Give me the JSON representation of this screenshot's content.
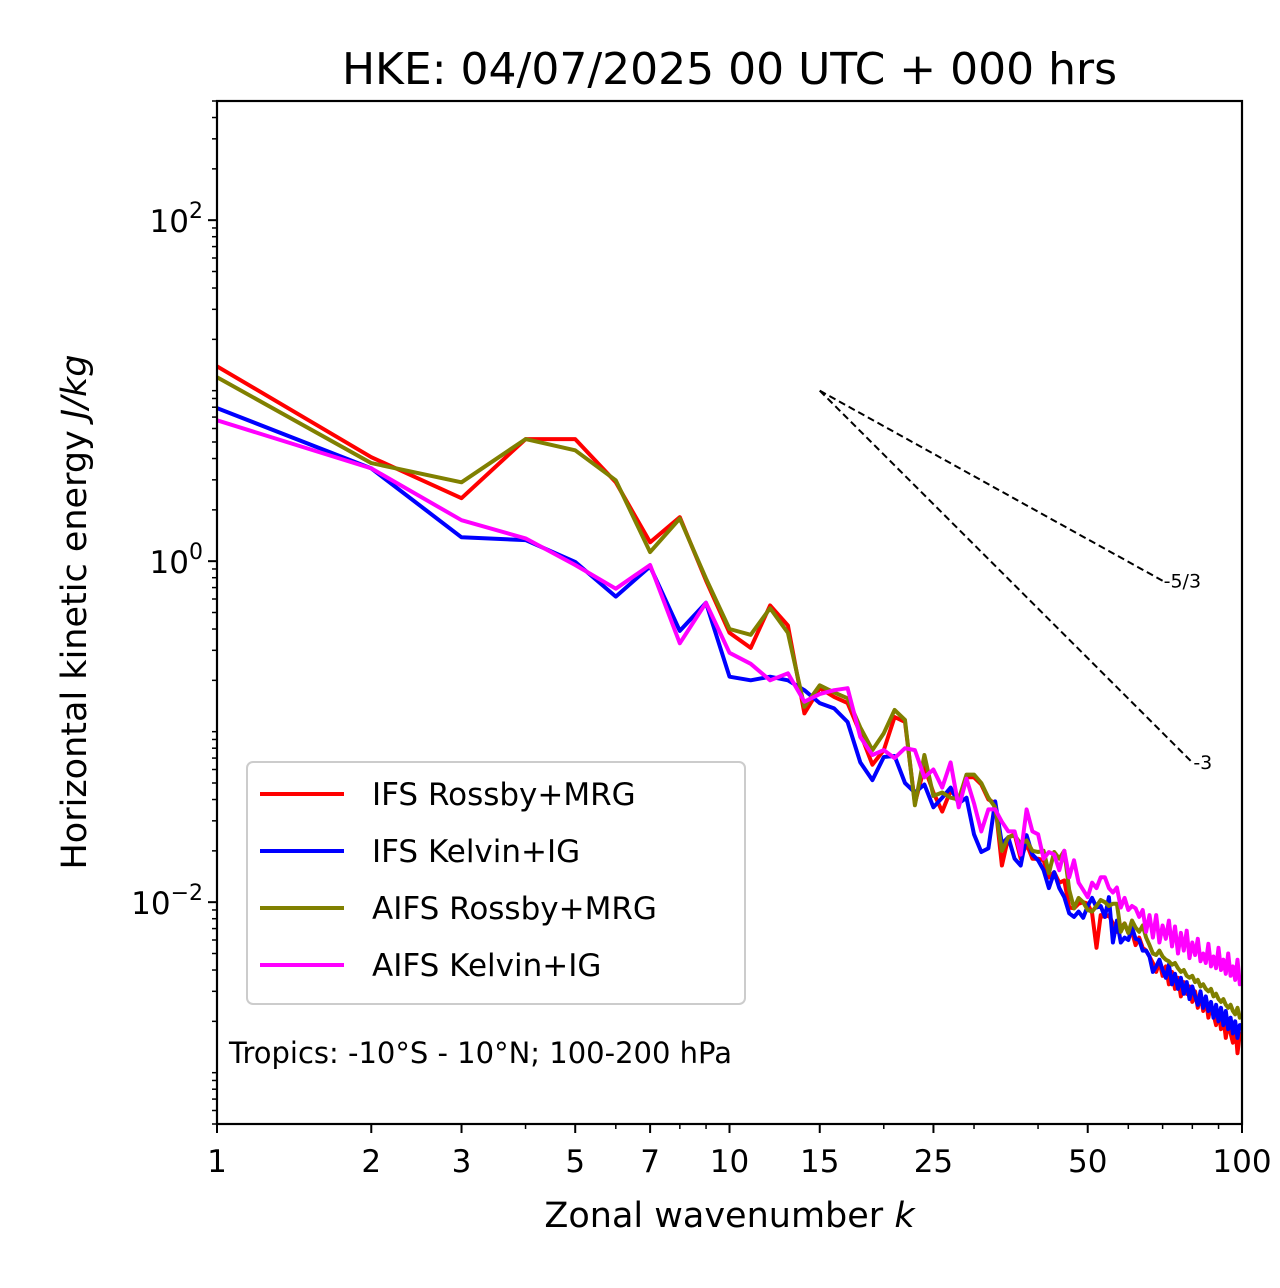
{
  "chart_data": {
    "type": "line",
    "title": "HKE: 04/07/2025 00 UTC + 000 hrs",
    "xlabel": "Zonal wavenumber",
    "xlabel_var": "k",
    "ylabel": "Horizontal kinetic energy",
    "ylabel_units": "J/kg",
    "xscale": "log",
    "yscale": "log",
    "xlim": [
      1,
      100
    ],
    "ylim": [
      0.0005,
      500
    ],
    "grid": false,
    "xticks": [
      {
        "value": 1,
        "label": "1"
      },
      {
        "value": 2,
        "label": "2"
      },
      {
        "value": 3,
        "label": "3"
      },
      {
        "value": 5,
        "label": "5"
      },
      {
        "value": 7,
        "label": "7"
      },
      {
        "value": 10,
        "label": "10"
      },
      {
        "value": 15,
        "label": "15"
      },
      {
        "value": 25,
        "label": "25"
      },
      {
        "value": 50,
        "label": "50"
      },
      {
        "value": 100,
        "label": "100"
      }
    ],
    "xminor_ticks": [
      4,
      6,
      8,
      9,
      20,
      30,
      40,
      60,
      70,
      80,
      90
    ],
    "yticks": [
      {
        "value": 0.01,
        "base": "10",
        "exp": "−2"
      },
      {
        "value": 1,
        "base": "10",
        "exp": "0"
      },
      {
        "value": 100,
        "base": "10",
        "exp": "2"
      }
    ],
    "legend_position": "lower-left",
    "annotation": "Tropics: -10°S - 10°N; 100-200 hPa",
    "reference_lines": [
      {
        "label": "-5/3",
        "slope": -1.6667,
        "k_start": 15,
        "k_end": 70,
        "e_start": 10
      },
      {
        "label": "-3",
        "slope": -3,
        "k_start": 15,
        "k_end": 80,
        "e_start": 10
      }
    ],
    "x": [
      1,
      2,
      3,
      4,
      5,
      6,
      7,
      8,
      9,
      10,
      11,
      12,
      13,
      14,
      15,
      16,
      17,
      18,
      19,
      20,
      21,
      22,
      23,
      24,
      25,
      26,
      27,
      28,
      29,
      30,
      31,
      32,
      33,
      34,
      35,
      36,
      37,
      38,
      39,
      40,
      41,
      42,
      43,
      44,
      45,
      46,
      47,
      48,
      49,
      50,
      51,
      52,
      53,
      54,
      55,
      56,
      57,
      58,
      59,
      60,
      61,
      62,
      63,
      64,
      65,
      66,
      67,
      68,
      69,
      70,
      71,
      72,
      73,
      74,
      75,
      76,
      77,
      78,
      79,
      80,
      81,
      82,
      83,
      84,
      85,
      86,
      87,
      88,
      89,
      90,
      91,
      92,
      93,
      94,
      95,
      96,
      97,
      98,
      99,
      100
    ],
    "series": [
      {
        "name": "IFS Rossby+MRG",
        "color": "#ff0000",
        "values": [
          13.9,
          4.07,
          2.34,
          5.2,
          5.2,
          2.9,
          1.29,
          1.81,
          0.77,
          0.38,
          0.31,
          0.55,
          0.42,
          0.128,
          0.18,
          0.16,
          0.147,
          0.098,
          0.064,
          0.078,
          0.122,
          0.114,
          0.038,
          0.062,
          0.044,
          0.034,
          0.045,
          0.04,
          0.054,
          0.054,
          0.049,
          0.04,
          0.038,
          0.0164,
          0.024,
          0.025,
          0.018,
          0.022,
          0.018,
          0.018,
          0.0176,
          0.014,
          0.015,
          0.013,
          0.0134,
          0.0093,
          0.0092,
          0.0098,
          0.01,
          0.0098,
          0.0086,
          0.0054,
          0.0084,
          0.0082,
          0.0084,
          0.0075,
          0.0067,
          0.0071,
          0.0075,
          0.0066,
          0.0067,
          0.0056,
          0.0062,
          0.0054,
          0.0052,
          0.0048,
          0.0044,
          0.0039,
          0.0045,
          0.0037,
          0.0042,
          0.0033,
          0.0039,
          0.0031,
          0.0036,
          0.0028,
          0.0034,
          0.0029,
          0.0032,
          0.0026,
          0.003,
          0.0024,
          0.0029,
          0.0023,
          0.0027,
          0.0021,
          0.0025,
          0.0022,
          0.0019,
          0.0023,
          0.0018,
          0.0021,
          0.0016,
          0.002,
          0.0017,
          0.0015,
          0.0019,
          0.0013,
          0.0017,
          0.0016
        ]
      },
      {
        "name": "IFS Kelvin+IG",
        "color": "#0000ff",
        "values": [
          7.9,
          3.5,
          1.38,
          1.33,
          0.99,
          0.62,
          0.93,
          0.39,
          0.57,
          0.21,
          0.2,
          0.21,
          0.2,
          0.175,
          0.147,
          0.137,
          0.114,
          0.066,
          0.052,
          0.071,
          0.072,
          0.05,
          0.044,
          0.049,
          0.036,
          0.041,
          0.047,
          0.038,
          0.041,
          0.025,
          0.0197,
          0.0207,
          0.039,
          0.022,
          0.024,
          0.018,
          0.0164,
          0.0247,
          0.019,
          0.0176,
          0.0154,
          0.0121,
          0.015,
          0.0121,
          0.0107,
          0.0086,
          0.0082,
          0.0088,
          0.0081,
          0.0095,
          0.0106,
          0.0093,
          0.0095,
          0.0082,
          0.0107,
          0.0058,
          0.0078,
          0.0058,
          0.0062,
          0.006,
          0.0071,
          0.0061,
          0.006,
          0.0052,
          0.0052,
          0.0048,
          0.0039,
          0.0042,
          0.0046,
          0.004,
          0.0036,
          0.0043,
          0.0033,
          0.0038,
          0.0031,
          0.0036,
          0.0029,
          0.0034,
          0.0027,
          0.0032,
          0.0028,
          0.0025,
          0.003,
          0.0024,
          0.0028,
          0.0023,
          0.0026,
          0.0021,
          0.0025,
          0.002,
          0.0024,
          0.0019,
          0.0023,
          0.0018,
          0.0021,
          0.0017,
          0.002,
          0.0016,
          0.0019,
          0.0019
        ]
      },
      {
        "name": "AIFS Rossby+MRG",
        "color": "#808000",
        "values": [
          12.0,
          3.76,
          2.9,
          5.2,
          4.47,
          2.98,
          1.13,
          1.78,
          0.79,
          0.4,
          0.37,
          0.53,
          0.38,
          0.14,
          0.187,
          0.17,
          0.157,
          0.106,
          0.078,
          0.098,
          0.134,
          0.117,
          0.037,
          0.073,
          0.042,
          0.044,
          0.041,
          0.04,
          0.056,
          0.056,
          0.05,
          0.041,
          0.036,
          0.02,
          0.024,
          0.0247,
          0.022,
          0.023,
          0.02,
          0.0197,
          0.02,
          0.0148,
          0.0197,
          0.018,
          0.02,
          0.0118,
          0.0092,
          0.0106,
          0.01,
          0.009,
          0.0088,
          0.0095,
          0.0103,
          0.01,
          0.0095,
          0.0098,
          0.0098,
          0.0067,
          0.0075,
          0.0066,
          0.0078,
          0.0071,
          0.0067,
          0.0073,
          0.0062,
          0.0056,
          0.005,
          0.0049,
          0.0052,
          0.0048,
          0.0046,
          0.0045,
          0.0043,
          0.0044,
          0.0041,
          0.0039,
          0.004,
          0.0037,
          0.0036,
          0.0037,
          0.0034,
          0.0035,
          0.0032,
          0.0033,
          0.0031,
          0.003,
          0.0031,
          0.0028,
          0.0029,
          0.0027,
          0.0026,
          0.0027,
          0.0025,
          0.0024,
          0.0025,
          0.0023,
          0.0022,
          0.0024,
          0.0021,
          0.0022
        ]
      },
      {
        "name": "AIFS Kelvin+IG",
        "color": "#ff00ff",
        "values": [
          6.7,
          3.5,
          1.74,
          1.36,
          0.95,
          0.69,
          0.95,
          0.33,
          0.57,
          0.29,
          0.25,
          0.2,
          0.22,
          0.15,
          0.166,
          0.175,
          0.18,
          0.093,
          0.073,
          0.078,
          0.07,
          0.08,
          0.078,
          0.054,
          0.06,
          0.047,
          0.066,
          0.036,
          0.053,
          0.038,
          0.026,
          0.035,
          0.035,
          0.0296,
          0.026,
          0.026,
          0.019,
          0.035,
          0.026,
          0.025,
          0.018,
          0.0197,
          0.019,
          0.0154,
          0.02,
          0.014,
          0.0176,
          0.013,
          0.0118,
          0.0107,
          0.013,
          0.0121,
          0.014,
          0.014,
          0.0121,
          0.0114,
          0.0122,
          0.0093,
          0.0106,
          0.009,
          0.0095,
          0.0092,
          0.0082,
          0.009,
          0.0067,
          0.0084,
          0.0062,
          0.0084,
          0.0058,
          0.0073,
          0.0061,
          0.0078,
          0.0055,
          0.0072,
          0.005,
          0.0066,
          0.0052,
          0.0068,
          0.0047,
          0.0058,
          0.0049,
          0.0061,
          0.0045,
          0.005,
          0.0044,
          0.0057,
          0.0042,
          0.0048,
          0.0041,
          0.0054,
          0.004,
          0.0046,
          0.0038,
          0.005,
          0.0037,
          0.0042,
          0.0035,
          0.0046,
          0.0033,
          0.0036
        ]
      }
    ]
  }
}
